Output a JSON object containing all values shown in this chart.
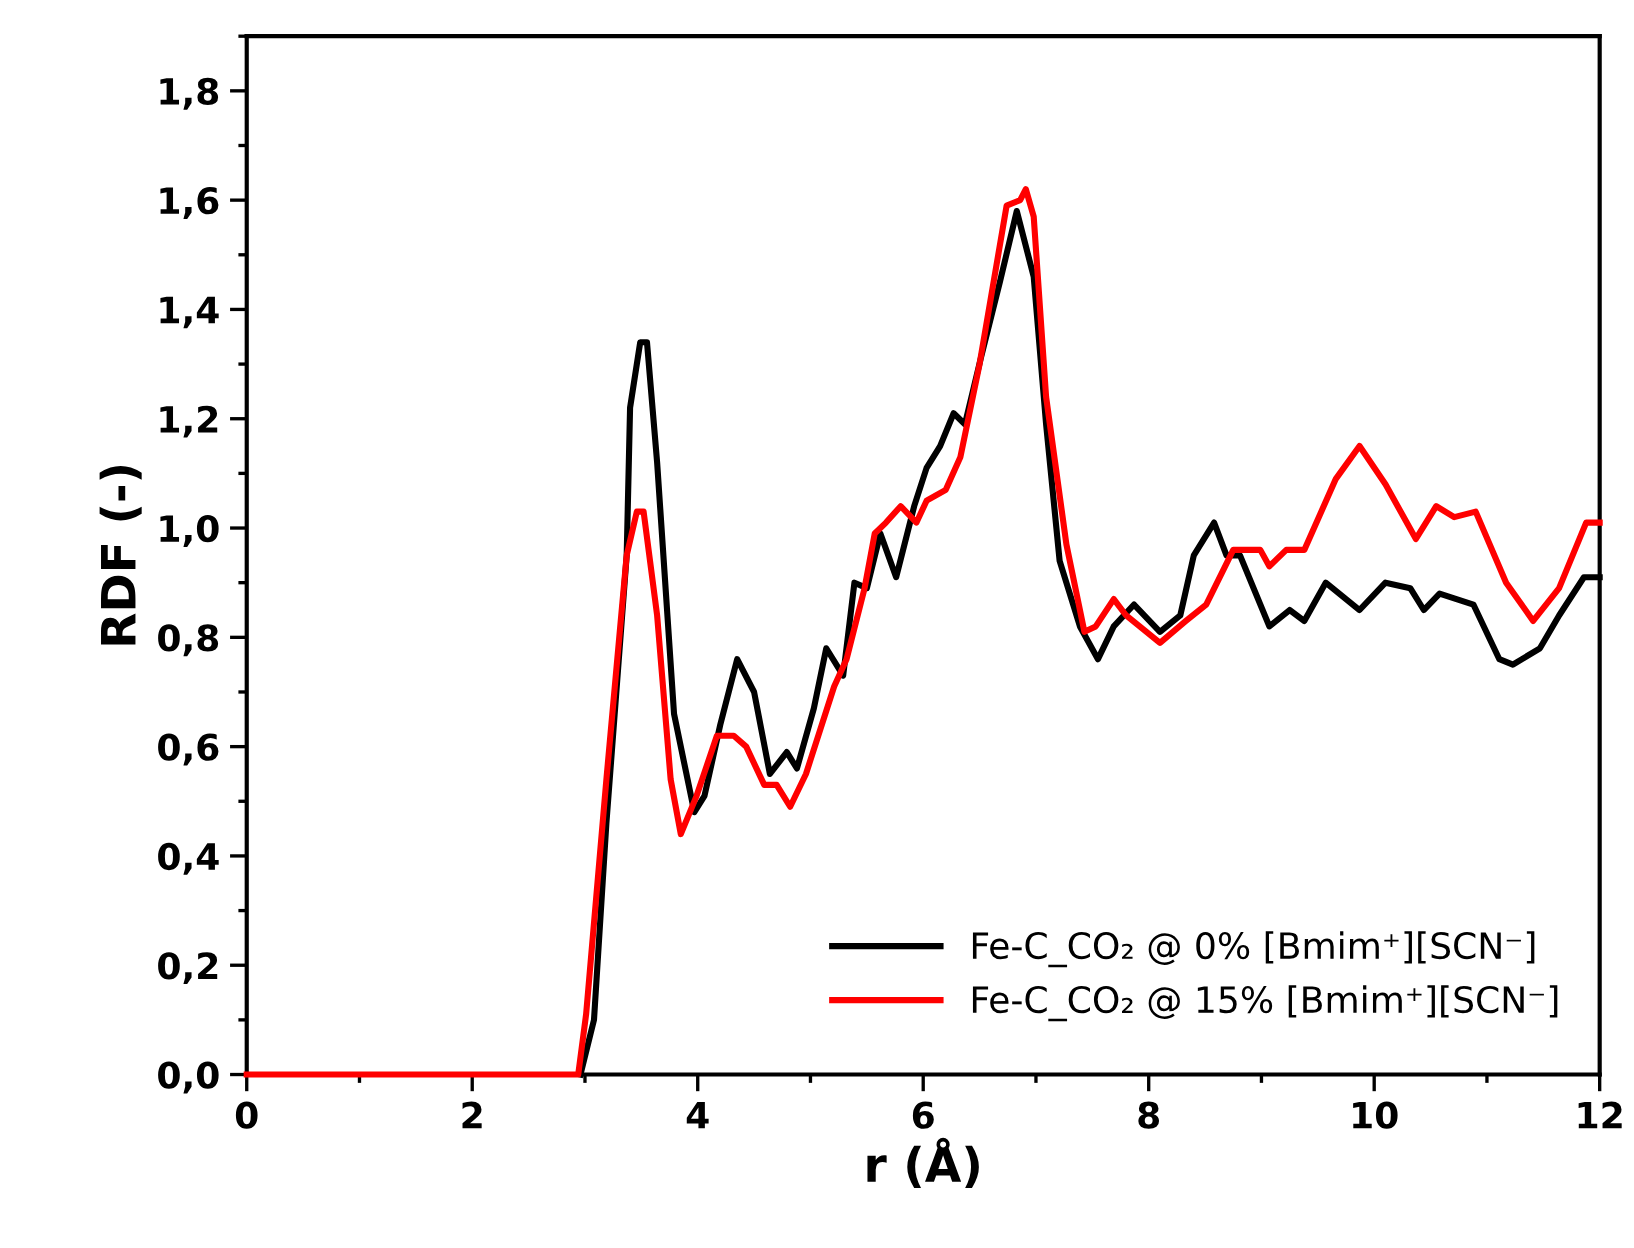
{
  "chart_data": {
    "type": "line",
    "xlabel": "r (Å)",
    "ylabel": "RDF (-)",
    "xlim": [
      0,
      12
    ],
    "ylim": [
      0,
      1.9
    ],
    "xticks": [
      0,
      2,
      4,
      6,
      8,
      10,
      12
    ],
    "yticks": [
      {
        "value": 0,
        "label": "0,0"
      },
      {
        "value": 0.2,
        "label": "0,2"
      },
      {
        "value": 0.4,
        "label": "0,4"
      },
      {
        "value": 0.6,
        "label": "0,6"
      },
      {
        "value": 0.8,
        "label": "0,8"
      },
      {
        "value": 1.0,
        "label": "1,0"
      },
      {
        "value": 1.2,
        "label": "1,2"
      },
      {
        "value": 1.4,
        "label": "1,4"
      },
      {
        "value": 1.6,
        "label": "1,6"
      },
      {
        "value": 1.8,
        "label": "1,8"
      }
    ],
    "grid": false,
    "legend": "bottom right",
    "marker": "none",
    "line_style": "solid",
    "series": [
      {
        "name": "Fe-C_CO₂ @ 0% [Bmim⁺][SCN⁻]",
        "color": "#000000",
        "x": [
          2.96,
          3.08,
          3.19,
          3.37,
          3.4,
          3.49,
          3.55,
          3.64,
          3.79,
          3.97,
          4.06,
          4.2,
          4.35,
          4.5,
          4.64,
          4.79,
          4.88,
          5.03,
          5.14,
          5.29,
          5.39,
          5.5,
          5.62,
          5.76,
          5.92,
          6.03,
          6.15,
          6.27,
          6.37,
          6.51,
          6.68,
          6.83,
          6.98,
          7.09,
          7.21,
          7.39,
          7.55,
          7.69,
          7.87,
          8.1,
          8.28,
          8.4,
          8.58,
          8.69,
          8.81,
          9.07,
          9.25,
          9.38,
          9.57,
          9.87,
          10.1,
          10.32,
          10.44,
          10.58,
          10.88,
          11.11,
          11.23,
          11.47,
          11.64,
          11.86,
          12.0
        ],
        "values": [
          0,
          0.1,
          0.46,
          0.95,
          1.22,
          1.34,
          1.34,
          1.12,
          0.66,
          0.48,
          0.51,
          0.64,
          0.76,
          0.7,
          0.55,
          0.59,
          0.56,
          0.67,
          0.78,
          0.73,
          0.9,
          0.89,
          0.99,
          0.91,
          1.04,
          1.11,
          1.15,
          1.21,
          1.19,
          1.31,
          1.45,
          1.58,
          1.46,
          1.19,
          0.94,
          0.82,
          0.76,
          0.82,
          0.86,
          0.81,
          0.84,
          0.95,
          1.01,
          0.95,
          0.95,
          0.82,
          0.85,
          0.83,
          0.9,
          0.85,
          0.9,
          0.89,
          0.85,
          0.88,
          0.86,
          0.76,
          0.75,
          0.78,
          0.84,
          0.91,
          0.91
        ]
      },
      {
        "name": "Fe-C_CO₂ @ 15% [Bmim⁺][SCN⁻]",
        "color": "#ff0000",
        "x": [
          0,
          2.94,
          3.01,
          3.19,
          3.37,
          3.46,
          3.52,
          3.64,
          3.76,
          3.85,
          3.99,
          4.17,
          4.32,
          4.43,
          4.59,
          4.7,
          4.82,
          4.96,
          5.21,
          5.32,
          5.48,
          5.57,
          5.67,
          5.8,
          5.94,
          6.03,
          6.2,
          6.33,
          6.5,
          6.74,
          6.86,
          6.91,
          6.98,
          7.09,
          7.27,
          7.43,
          7.53,
          7.69,
          7.8,
          8.1,
          8.33,
          8.51,
          8.75,
          8.99,
          9.07,
          9.22,
          9.38,
          9.66,
          9.87,
          10.1,
          10.37,
          10.55,
          10.71,
          10.9,
          11.17,
          11.41,
          11.64,
          11.88,
          12.0
        ],
        "values": [
          0,
          0,
          0.11,
          0.54,
          0.95,
          1.03,
          1.03,
          0.84,
          0.54,
          0.44,
          0.51,
          0.62,
          0.62,
          0.6,
          0.53,
          0.53,
          0.49,
          0.55,
          0.71,
          0.76,
          0.89,
          0.99,
          1.01,
          1.04,
          1.01,
          1.05,
          1.07,
          1.13,
          1.3,
          1.59,
          1.6,
          1.62,
          1.57,
          1.24,
          0.97,
          0.81,
          0.82,
          0.87,
          0.84,
          0.79,
          0.83,
          0.86,
          0.96,
          0.96,
          0.93,
          0.96,
          0.96,
          1.09,
          1.15,
          1.08,
          0.98,
          1.04,
          1.02,
          1.03,
          0.9,
          0.83,
          0.89,
          1.01,
          1.01
        ]
      }
    ]
  }
}
